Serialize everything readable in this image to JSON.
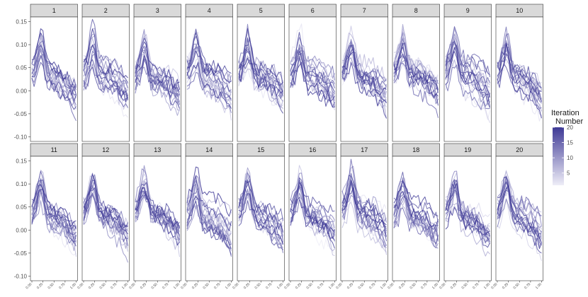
{
  "chart_data": {
    "type": "line",
    "title": "",
    "xlabel": "",
    "ylabel": "",
    "panels": [
      "1",
      "2",
      "3",
      "4",
      "5",
      "6",
      "7",
      "8",
      "9",
      "10",
      "11",
      "12",
      "13",
      "14",
      "15",
      "16",
      "17",
      "18",
      "19",
      "20"
    ],
    "layout": {
      "rows": 2,
      "cols": 10
    },
    "x_ticks": [
      "0.00",
      "0.25",
      "0.50",
      "0.75",
      "1.00"
    ],
    "xlim": [
      0,
      1
    ],
    "y_ticks": [
      "0.15",
      "0.10",
      "0.05",
      "0.00",
      "-0.05",
      "-0.10"
    ],
    "ylim": [
      -0.11,
      0.16
    ],
    "series_per_panel": 20,
    "x": [
      0.0,
      0.05,
      0.1,
      0.15,
      0.2,
      0.25,
      0.3,
      0.35,
      0.4,
      0.45,
      0.5,
      0.55,
      0.6,
      0.65,
      0.7,
      0.75,
      0.8,
      0.85,
      0.9,
      0.95,
      1.0
    ],
    "typical_curve": [
      0.04,
      0.045,
      0.06,
      0.08,
      0.095,
      0.085,
      0.06,
      0.04,
      0.035,
      0.03,
      0.03,
      0.028,
      0.025,
      0.022,
      0.02,
      0.015,
      0.01,
      0.005,
      0.0,
      -0.005,
      -0.01
    ],
    "legend": {
      "title": "Iteration\nNumber",
      "title_lines": [
        "Iteration",
        "Number"
      ],
      "ticks": [
        "20",
        "15",
        "10",
        "5"
      ],
      "range": [
        1,
        20
      ],
      "color_low": "#eeedf7",
      "color_high": "#3f3a96"
    },
    "strip_color": "#d9d9d9"
  }
}
